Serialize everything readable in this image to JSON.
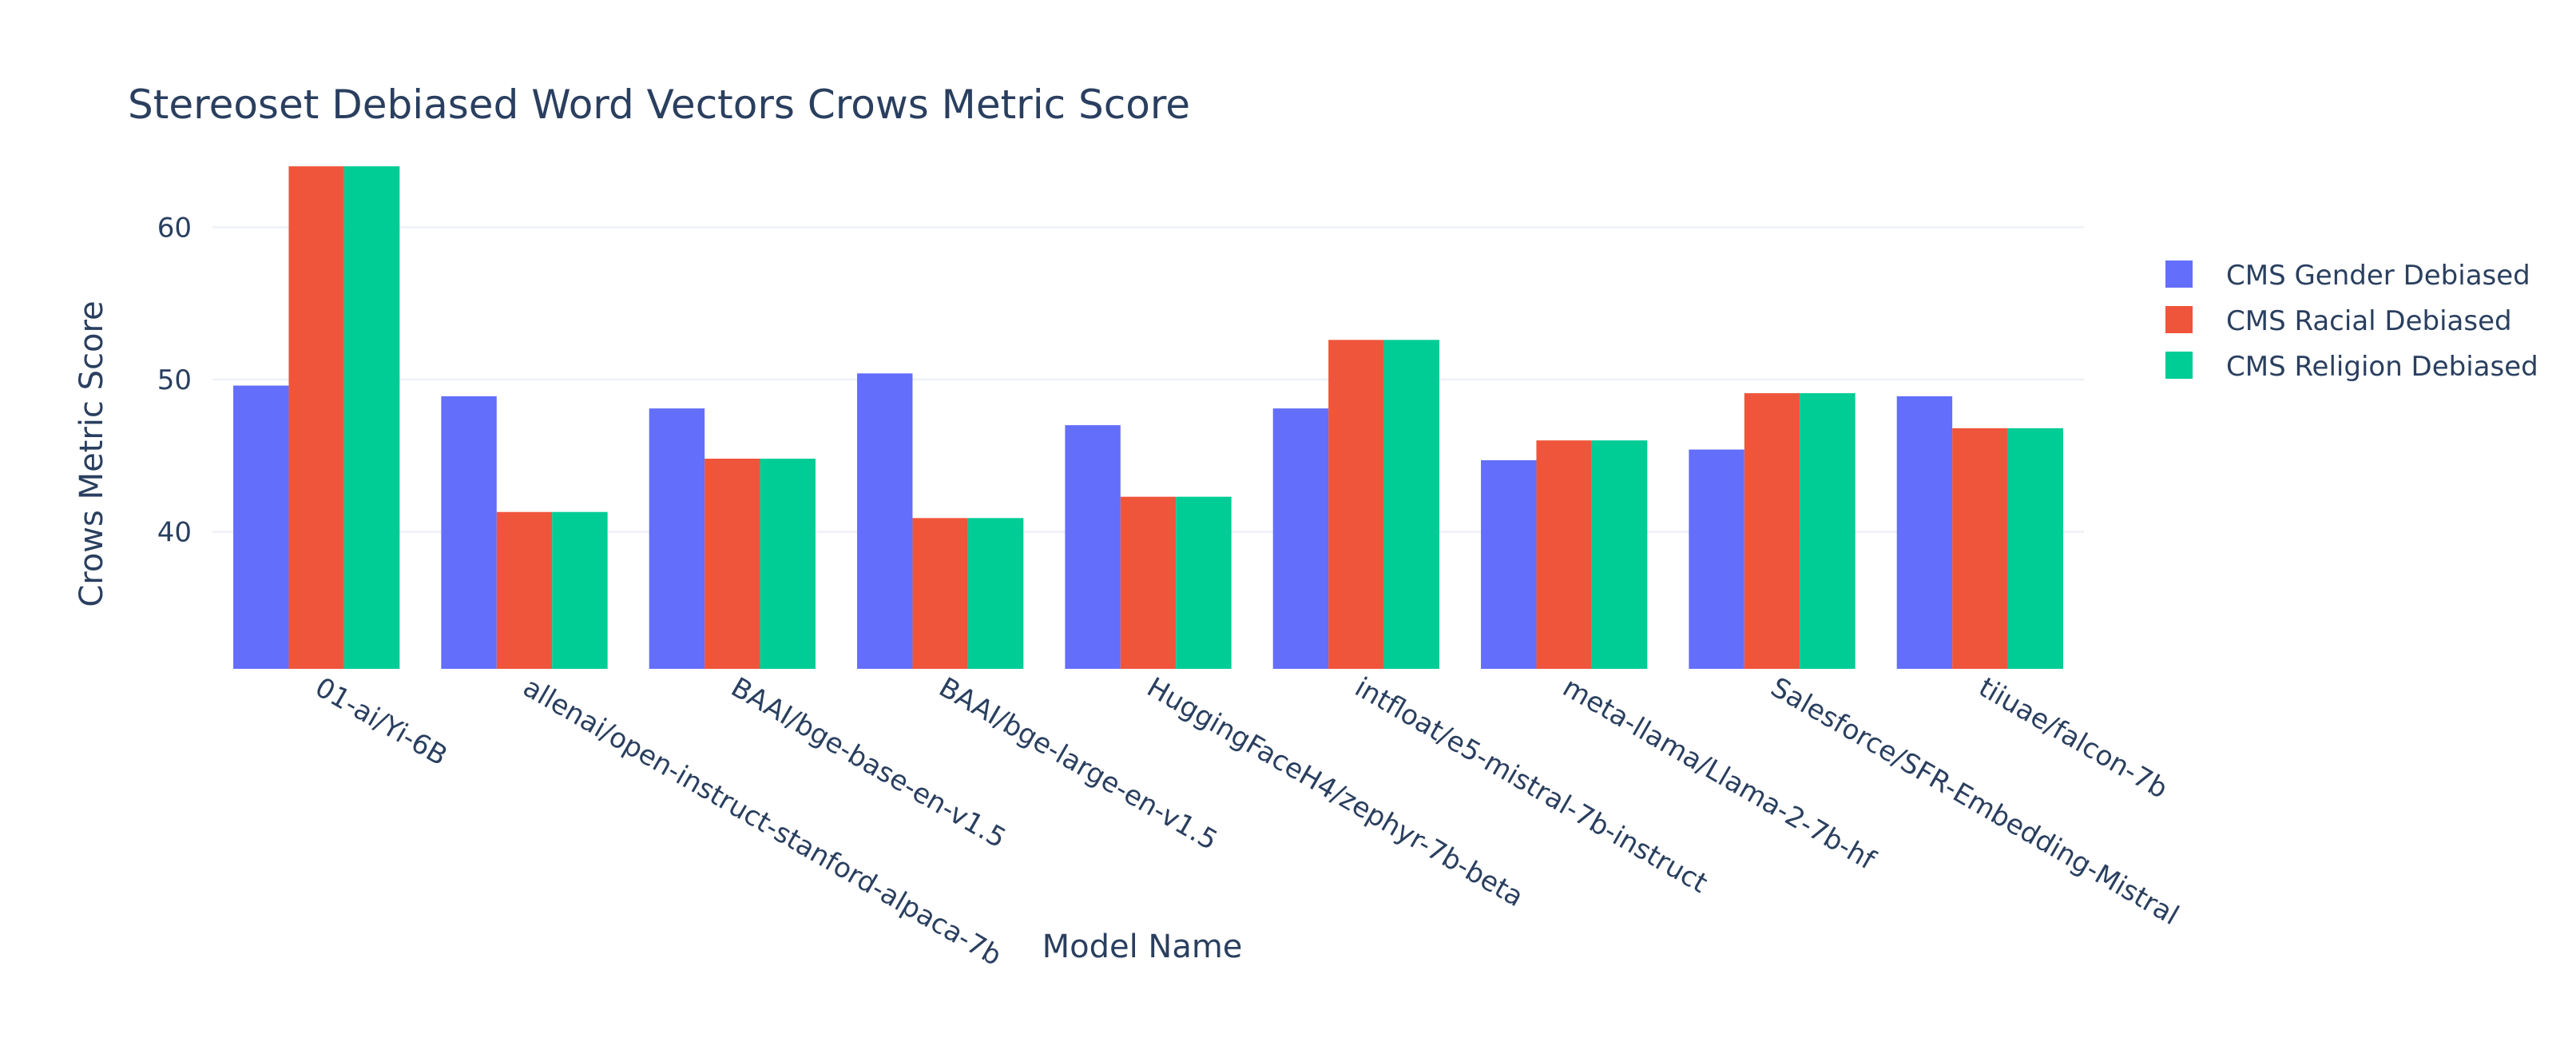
{
  "chart_data": {
    "type": "bar",
    "title": "Stereoset Debiased Word Vectors Crows Metric Score",
    "xlabel": "Model Name",
    "ylabel": "Crows Metric Score",
    "ylim": [
      31,
      66
    ],
    "yticks": [
      40,
      50,
      60
    ],
    "grid": true,
    "legend_position": "top-right",
    "categories": [
      "01-ai/Yi-6B",
      "allenai/open-instruct-stanford-alpaca-7b",
      "BAAI/bge-base-en-v1.5",
      "BAAI/bge-large-en-v1.5",
      "HuggingFaceH4/zephyr-7b-beta",
      "intfloat/e5-mistral-7b-instruct",
      "meta-llama/Llama-2-7b-hf",
      "Salesforce/SFR-Embedding-Mistral",
      "tiiuae/falcon-7b"
    ],
    "series": [
      {
        "name": "CMS Gender Debiased",
        "color": "#636efa",
        "values": [
          49.6,
          48.9,
          48.1,
          50.4,
          47.0,
          48.1,
          44.7,
          45.4,
          48.9
        ]
      },
      {
        "name": "CMS Racial Debiased",
        "color": "#ef553b",
        "values": [
          64.0,
          41.3,
          44.8,
          40.9,
          42.3,
          52.6,
          46.0,
          49.1,
          46.8
        ]
      },
      {
        "name": "CMS Religion Debiased",
        "color": "#00cc96",
        "values": [
          64.0,
          41.3,
          44.8,
          40.9,
          42.3,
          52.6,
          46.0,
          49.1,
          46.8
        ]
      }
    ]
  }
}
